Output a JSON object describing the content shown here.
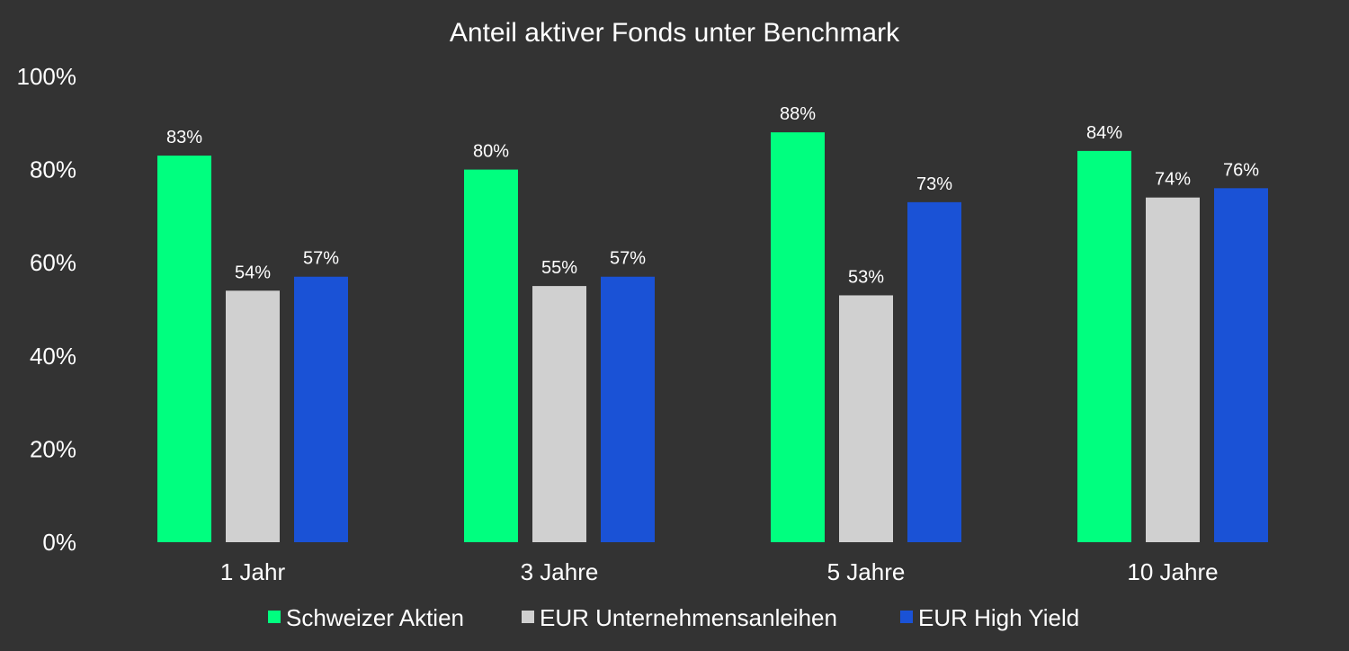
{
  "chart_data": {
    "type": "bar",
    "title": "Anteil aktiver Fonds unter Benchmark",
    "categories": [
      "1 Jahr",
      "3 Jahre",
      "5 Jahre",
      "10 Jahre"
    ],
    "series": [
      {
        "name": "Schweizer Aktien",
        "color": "#00ff7f",
        "values": [
          83,
          80,
          88,
          84
        ]
      },
      {
        "name": "EUR Unternehmensanleihen",
        "color": "#d0d0d0",
        "values": [
          54,
          55,
          53,
          74
        ]
      },
      {
        "name": "EUR High Yield",
        "color": "#1a52d6",
        "values": [
          57,
          57,
          73,
          76
        ]
      }
    ],
    "value_suffix": "%",
    "ylim": [
      0,
      100
    ],
    "yticks": [
      "0%",
      "20%",
      "40%",
      "60%",
      "80%",
      "100%"
    ],
    "ytick_values": [
      0,
      20,
      40,
      60,
      80,
      100
    ],
    "grid": false,
    "legend_position": "bottom",
    "background": "#333333"
  }
}
